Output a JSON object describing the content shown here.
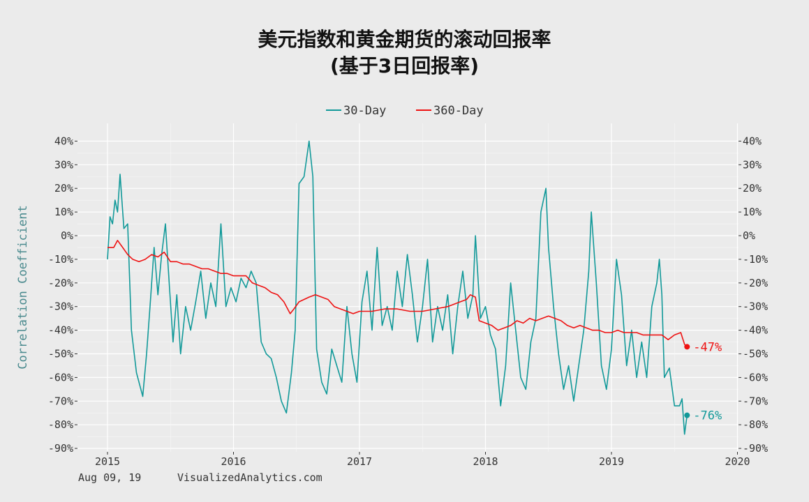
{
  "chart_data": {
    "type": "line",
    "title_line1": "美元指数和黄金期货的滚动回报率",
    "title_line2": "(基于3日回报率)",
    "ylabel": "Correlation Coefficient",
    "xlabel": "",
    "xlim": [
      2015,
      2020
    ],
    "ylim": [
      -90,
      45
    ],
    "x_ticks": [
      "2015",
      "2016",
      "2017",
      "2018",
      "2019",
      "2020"
    ],
    "y_ticks": [
      "40%",
      "30%",
      "20%",
      "10%",
      "0%",
      "-10%",
      "-20%",
      "-30%",
      "-40%",
      "-50%",
      "-60%",
      "-70%",
      "-80%",
      "-90%"
    ],
    "legend_position": "top-center",
    "grid": true,
    "series": [
      {
        "name": "30-Day",
        "color": "#119999",
        "end_label": "-76%",
        "end_value": -76,
        "points": [
          [
            2015.0,
            -10
          ],
          [
            2015.02,
            8
          ],
          [
            2015.04,
            5
          ],
          [
            2015.06,
            15
          ],
          [
            2015.08,
            10
          ],
          [
            2015.1,
            26
          ],
          [
            2015.13,
            3
          ],
          [
            2015.16,
            5
          ],
          [
            2015.19,
            -40
          ],
          [
            2015.23,
            -58
          ],
          [
            2015.28,
            -68
          ],
          [
            2015.31,
            -50
          ],
          [
            2015.34,
            -28
          ],
          [
            2015.37,
            -5
          ],
          [
            2015.4,
            -25
          ],
          [
            2015.43,
            -8
          ],
          [
            2015.46,
            5
          ],
          [
            2015.49,
            -20
          ],
          [
            2015.52,
            -45
          ],
          [
            2015.55,
            -25
          ],
          [
            2015.58,
            -50
          ],
          [
            2015.62,
            -30
          ],
          [
            2015.66,
            -40
          ],
          [
            2015.7,
            -28
          ],
          [
            2015.74,
            -15
          ],
          [
            2015.78,
            -35
          ],
          [
            2015.82,
            -20
          ],
          [
            2015.86,
            -30
          ],
          [
            2015.9,
            5
          ],
          [
            2015.94,
            -30
          ],
          [
            2015.98,
            -22
          ],
          [
            2016.02,
            -28
          ],
          [
            2016.06,
            -18
          ],
          [
            2016.1,
            -22
          ],
          [
            2016.14,
            -15
          ],
          [
            2016.18,
            -20
          ],
          [
            2016.22,
            -45
          ],
          [
            2016.26,
            -50
          ],
          [
            2016.3,
            -52
          ],
          [
            2016.34,
            -60
          ],
          [
            2016.38,
            -70
          ],
          [
            2016.42,
            -75
          ],
          [
            2016.46,
            -58
          ],
          [
            2016.49,
            -40
          ],
          [
            2016.52,
            22
          ],
          [
            2016.56,
            25
          ],
          [
            2016.6,
            40
          ],
          [
            2016.63,
            25
          ],
          [
            2016.66,
            -48
          ],
          [
            2016.7,
            -62
          ],
          [
            2016.74,
            -67
          ],
          [
            2016.78,
            -48
          ],
          [
            2016.82,
            -55
          ],
          [
            2016.86,
            -62
          ],
          [
            2016.9,
            -30
          ],
          [
            2016.94,
            -50
          ],
          [
            2016.98,
            -62
          ],
          [
            2017.02,
            -28
          ],
          [
            2017.06,
            -15
          ],
          [
            2017.1,
            -40
          ],
          [
            2017.14,
            -5
          ],
          [
            2017.18,
            -38
          ],
          [
            2017.22,
            -30
          ],
          [
            2017.26,
            -40
          ],
          [
            2017.3,
            -15
          ],
          [
            2017.34,
            -30
          ],
          [
            2017.38,
            -8
          ],
          [
            2017.42,
            -25
          ],
          [
            2017.46,
            -45
          ],
          [
            2017.5,
            -30
          ],
          [
            2017.54,
            -10
          ],
          [
            2017.58,
            -45
          ],
          [
            2017.62,
            -30
          ],
          [
            2017.66,
            -40
          ],
          [
            2017.7,
            -25
          ],
          [
            2017.74,
            -50
          ],
          [
            2017.78,
            -30
          ],
          [
            2017.82,
            -15
          ],
          [
            2017.86,
            -35
          ],
          [
            2017.9,
            -25
          ],
          [
            2017.92,
            0
          ],
          [
            2017.96,
            -35
          ],
          [
            2018.0,
            -30
          ],
          [
            2018.04,
            -42
          ],
          [
            2018.08,
            -48
          ],
          [
            2018.12,
            -72
          ],
          [
            2018.16,
            -55
          ],
          [
            2018.2,
            -20
          ],
          [
            2018.24,
            -40
          ],
          [
            2018.28,
            -60
          ],
          [
            2018.32,
            -65
          ],
          [
            2018.36,
            -45
          ],
          [
            2018.4,
            -35
          ],
          [
            2018.44,
            10
          ],
          [
            2018.48,
            20
          ],
          [
            2018.5,
            -5
          ],
          [
            2018.54,
            -30
          ],
          [
            2018.58,
            -50
          ],
          [
            2018.62,
            -65
          ],
          [
            2018.66,
            -55
          ],
          [
            2018.7,
            -70
          ],
          [
            2018.74,
            -55
          ],
          [
            2018.78,
            -40
          ],
          [
            2018.82,
            -15
          ],
          [
            2018.84,
            10
          ],
          [
            2018.88,
            -20
          ],
          [
            2018.92,
            -55
          ],
          [
            2018.96,
            -65
          ],
          [
            2019.0,
            -48
          ],
          [
            2019.04,
            -10
          ],
          [
            2019.08,
            -25
          ],
          [
            2019.12,
            -55
          ],
          [
            2019.16,
            -40
          ],
          [
            2019.2,
            -60
          ],
          [
            2019.24,
            -45
          ],
          [
            2019.28,
            -60
          ],
          [
            2019.32,
            -30
          ],
          [
            2019.36,
            -20
          ],
          [
            2019.38,
            -10
          ],
          [
            2019.4,
            -25
          ],
          [
            2019.42,
            -60
          ],
          [
            2019.46,
            -56
          ],
          [
            2019.5,
            -72
          ],
          [
            2019.54,
            -72
          ],
          [
            2019.56,
            -69
          ],
          [
            2019.58,
            -84
          ],
          [
            2019.6,
            -76
          ]
        ]
      },
      {
        "name": "360-Day",
        "color": "#ee1111",
        "end_label": "-47%",
        "end_value": -47,
        "points": [
          [
            2015.0,
            -5
          ],
          [
            2015.05,
            -5
          ],
          [
            2015.08,
            -2
          ],
          [
            2015.12,
            -5
          ],
          [
            2015.16,
            -8
          ],
          [
            2015.2,
            -10
          ],
          [
            2015.25,
            -11
          ],
          [
            2015.3,
            -10
          ],
          [
            2015.35,
            -8
          ],
          [
            2015.4,
            -9
          ],
          [
            2015.45,
            -7
          ],
          [
            2015.5,
            -11
          ],
          [
            2015.55,
            -11
          ],
          [
            2015.6,
            -12
          ],
          [
            2015.65,
            -12
          ],
          [
            2015.7,
            -13
          ],
          [
            2015.75,
            -14
          ],
          [
            2015.8,
            -14
          ],
          [
            2015.85,
            -15
          ],
          [
            2015.9,
            -16
          ],
          [
            2015.95,
            -16
          ],
          [
            2016.0,
            -17
          ],
          [
            2016.05,
            -17
          ],
          [
            2016.1,
            -17
          ],
          [
            2016.15,
            -20
          ],
          [
            2016.2,
            -21
          ],
          [
            2016.25,
            -22
          ],
          [
            2016.3,
            -24
          ],
          [
            2016.35,
            -25
          ],
          [
            2016.4,
            -28
          ],
          [
            2016.45,
            -33
          ],
          [
            2016.48,
            -31
          ],
          [
            2016.52,
            -28
          ],
          [
            2016.56,
            -27
          ],
          [
            2016.6,
            -26
          ],
          [
            2016.65,
            -25
          ],
          [
            2016.7,
            -26
          ],
          [
            2016.75,
            -27
          ],
          [
            2016.8,
            -30
          ],
          [
            2016.85,
            -31
          ],
          [
            2016.9,
            -32
          ],
          [
            2016.95,
            -33
          ],
          [
            2017.0,
            -32
          ],
          [
            2017.1,
            -32
          ],
          [
            2017.2,
            -31
          ],
          [
            2017.3,
            -31
          ],
          [
            2017.4,
            -32
          ],
          [
            2017.5,
            -32
          ],
          [
            2017.6,
            -31
          ],
          [
            2017.7,
            -30
          ],
          [
            2017.8,
            -28
          ],
          [
            2017.85,
            -27
          ],
          [
            2017.88,
            -25
          ],
          [
            2017.92,
            -26
          ],
          [
            2017.95,
            -36
          ],
          [
            2018.0,
            -37
          ],
          [
            2018.05,
            -38
          ],
          [
            2018.1,
            -40
          ],
          [
            2018.15,
            -39
          ],
          [
            2018.2,
            -38
          ],
          [
            2018.25,
            -36
          ],
          [
            2018.3,
            -37
          ],
          [
            2018.35,
            -35
          ],
          [
            2018.4,
            -36
          ],
          [
            2018.45,
            -35
          ],
          [
            2018.5,
            -34
          ],
          [
            2018.55,
            -35
          ],
          [
            2018.6,
            -36
          ],
          [
            2018.65,
            -38
          ],
          [
            2018.7,
            -39
          ],
          [
            2018.75,
            -38
          ],
          [
            2018.8,
            -39
          ],
          [
            2018.85,
            -40
          ],
          [
            2018.9,
            -40
          ],
          [
            2018.95,
            -41
          ],
          [
            2019.0,
            -41
          ],
          [
            2019.05,
            -40
          ],
          [
            2019.1,
            -41
          ],
          [
            2019.15,
            -41
          ],
          [
            2019.2,
            -41
          ],
          [
            2019.25,
            -42
          ],
          [
            2019.3,
            -42
          ],
          [
            2019.35,
            -42
          ],
          [
            2019.4,
            -42
          ],
          [
            2019.45,
            -44
          ],
          [
            2019.5,
            -42
          ],
          [
            2019.55,
            -41
          ],
          [
            2019.58,
            -46
          ],
          [
            2019.6,
            -47
          ]
        ]
      }
    ]
  },
  "footer": {
    "date": "Aug 09, 19",
    "site": "VisualizedAnalytics.com"
  }
}
